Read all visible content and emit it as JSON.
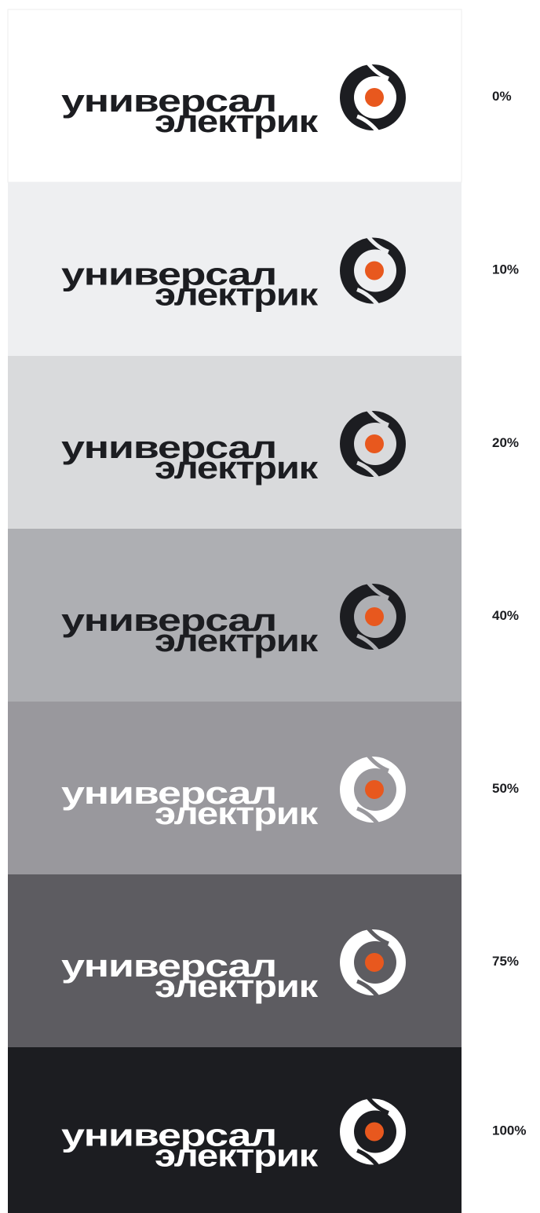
{
  "logo": {
    "line1": "универсал",
    "line2": "электрик"
  },
  "panels": [
    {
      "label": "0%",
      "background": "#ffffff",
      "logo_color": "#1c1d21"
    },
    {
      "label": "10%",
      "background": "#eeeff1",
      "logo_color": "#1c1d21"
    },
    {
      "label": "20%",
      "background": "#d9dadc",
      "logo_color": "#1c1d21"
    },
    {
      "label": "40%",
      "background": "#aeafb3",
      "logo_color": "#1c1d21"
    },
    {
      "label": "50%",
      "background": "#99989d",
      "logo_color": "#ffffff"
    },
    {
      "label": "75%",
      "background": "#5d5c61",
      "logo_color": "#ffffff"
    },
    {
      "label": "100%",
      "background": "#1c1d21",
      "logo_color": "#ffffff"
    }
  ]
}
